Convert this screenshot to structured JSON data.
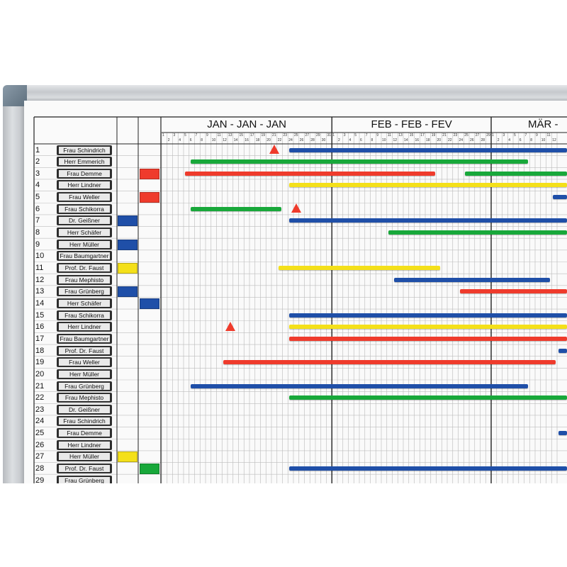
{
  "months": [
    "JAN - JAN - JAN",
    "FEB - FEB - FEV",
    "MÄR -"
  ],
  "rows": [
    {
      "n": "1",
      "name": "Frau Schindrich"
    },
    {
      "n": "2",
      "name": "Herr Emmerich"
    },
    {
      "n": "3",
      "name": "Frau Demme"
    },
    {
      "n": "4",
      "name": "Herr Lindner"
    },
    {
      "n": "5",
      "name": "Frau Weller"
    },
    {
      "n": "6",
      "name": "Frau Schikorra"
    },
    {
      "n": "7",
      "name": "Dr. Geißner"
    },
    {
      "n": "8",
      "name": "Herr Schäfer"
    },
    {
      "n": "9",
      "name": "Herr Müller"
    },
    {
      "n": "10",
      "name": "Frau Baumgartner"
    },
    {
      "n": "11",
      "name": "Prof. Dr. Faust"
    },
    {
      "n": "12",
      "name": "Frau Mephisto"
    },
    {
      "n": "13",
      "name": "Frau Grünberg"
    },
    {
      "n": "14",
      "name": "Herr Schäfer"
    },
    {
      "n": "15",
      "name": "Frau Schikorra"
    },
    {
      "n": "16",
      "name": "Herr Lindner"
    },
    {
      "n": "17",
      "name": "Frau Baumgartner"
    },
    {
      "n": "18",
      "name": "Prof. Dr. Faust"
    },
    {
      "n": "19",
      "name": "Frau Weller"
    },
    {
      "n": "20",
      "name": "Herr Müller"
    },
    {
      "n": "21",
      "name": "Frau Grünberg"
    },
    {
      "n": "22",
      "name": "Frau Mephisto"
    },
    {
      "n": "23",
      "name": "Dr. Geißner"
    },
    {
      "n": "24",
      "name": "Frau Schindrich"
    },
    {
      "n": "25",
      "name": "Frau Demme"
    },
    {
      "n": "26",
      "name": "Herr Lindner"
    },
    {
      "n": "27",
      "name": "Herr Müller"
    },
    {
      "n": "28",
      "name": "Prof. Dr. Faust"
    },
    {
      "n": "29",
      "name": "Frau Grünberg"
    }
  ],
  "colors": {
    "blue": "#1f4fa8",
    "green": "#18a83a",
    "red": "#ef3b2c",
    "yellow": "#f4e01a"
  },
  "magnets": [
    {
      "row": 3,
      "col": 2,
      "color": "red"
    },
    {
      "row": 5,
      "col": 2,
      "color": "red"
    },
    {
      "row": 7,
      "col": 1,
      "color": "blue"
    },
    {
      "row": 9,
      "col": 1,
      "color": "blue"
    },
    {
      "row": 11,
      "col": 1,
      "color": "yellow"
    },
    {
      "row": 13,
      "col": 1,
      "color": "blue"
    },
    {
      "row": 14,
      "col": 2,
      "color": "blue"
    },
    {
      "row": 27,
      "col": 1,
      "color": "yellow"
    },
    {
      "row": 28,
      "col": 2,
      "color": "green"
    }
  ],
  "bars": [
    {
      "row": 1,
      "start": 24,
      "end": null,
      "color": "blue"
    },
    {
      "row": 2,
      "start": 6,
      "end": 67,
      "color": "green"
    },
    {
      "row": 3,
      "start": 5,
      "end": 50,
      "color": "red"
    },
    {
      "row": 3,
      "start": 56,
      "end": null,
      "color": "green"
    },
    {
      "row": 4,
      "start": 24,
      "end": null,
      "color": "yellow"
    },
    {
      "row": 5,
      "start": 72,
      "end": null,
      "color": "blue"
    },
    {
      "row": 6,
      "start": 6,
      "end": 22,
      "color": "green"
    },
    {
      "row": 7,
      "start": 24,
      "end": null,
      "color": "blue"
    },
    {
      "row": 8,
      "start": 42,
      "end": null,
      "color": "green"
    },
    {
      "row": 11,
      "start": 22,
      "end": 51,
      "color": "yellow"
    },
    {
      "row": 12,
      "start": 43,
      "end": 71,
      "color": "blue"
    },
    {
      "row": 13,
      "start": 55,
      "end": null,
      "color": "red"
    },
    {
      "row": 15,
      "start": 24,
      "end": null,
      "color": "blue"
    },
    {
      "row": 16,
      "start": 24,
      "end": null,
      "color": "yellow"
    },
    {
      "row": 17,
      "start": 24,
      "end": null,
      "color": "red"
    },
    {
      "row": 18,
      "start": 73,
      "end": null,
      "color": "blue"
    },
    {
      "row": 19,
      "start": 12,
      "end": 72,
      "color": "red"
    },
    {
      "row": 21,
      "start": 6,
      "end": 67,
      "color": "blue"
    },
    {
      "row": 22,
      "start": 24,
      "end": null,
      "color": "green"
    },
    {
      "row": 25,
      "start": 73,
      "end": null,
      "color": "blue"
    },
    {
      "row": 28,
      "start": 24,
      "end": null,
      "color": "blue"
    }
  ],
  "markers": [
    {
      "row": 1,
      "day": 21,
      "color": "red"
    },
    {
      "row": 6,
      "day": 25,
      "color": "red"
    },
    {
      "row": 16,
      "day": 13,
      "color": "red"
    }
  ],
  "days": {
    "jan": 31,
    "feb": 29,
    "mar_visible": 12
  }
}
